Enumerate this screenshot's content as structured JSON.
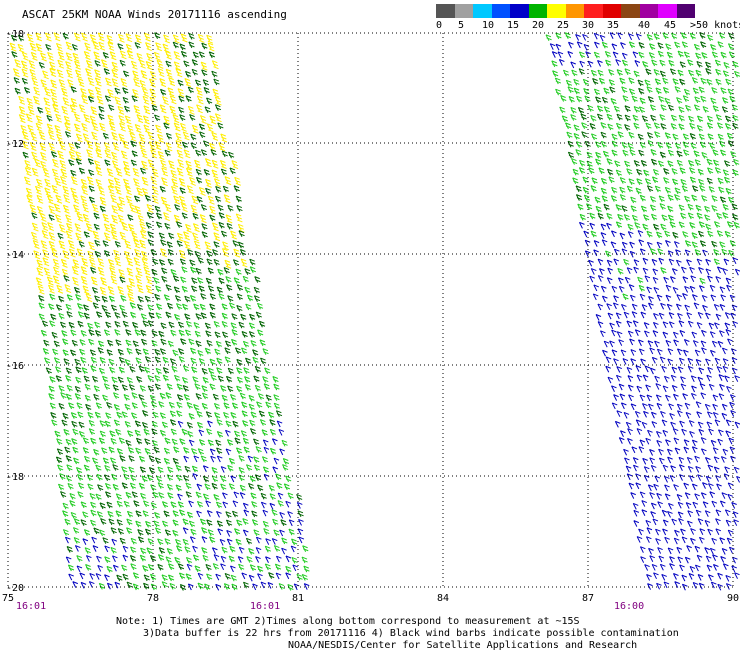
{
  "title": "ASCAT 25KM NOAA Winds 20171116 ascending",
  "legend": {
    "labels": [
      "0",
      "5",
      "10",
      "15",
      "20",
      "25",
      "30",
      "35",
      "40",
      "45",
      ">50 knots"
    ],
    "colors": [
      "#5a5a5a",
      "#9b9b9b",
      "#00c8ff",
      "#0050ff",
      "#0000c0",
      "#00b400",
      "#ffff00",
      "#ff9600",
      "#ff0000",
      "#e00000",
      "#8b5a2b",
      "#a000a0",
      "#e000e0",
      "#600080"
    ]
  },
  "axes": {
    "latitudes": [
      "-10",
      "-12",
      "-14",
      "-16",
      "-18",
      "-20"
    ],
    "longitudes": [
      "75",
      "78",
      "81",
      "84",
      "87",
      "90"
    ]
  },
  "times": [
    "16:01",
    "16:01",
    "16:00"
  ],
  "notes": {
    "line1": "Note: 1) Times are GMT 2)Times along bottom correspond to measurement at ~15S",
    "line2": "3)Data buffer is 22 hrs from 20171116 4) Black wind barbs indicate possible contamination",
    "line3": "NOAA/NESDIS/Center for Satellite Applications and Research"
  },
  "swaths": [
    {
      "name": "west-swath",
      "colors": {
        "weak": "#0000c0",
        "moderate": "#22cc22",
        "strong": "#006400",
        "gale": "#ffee00"
      }
    },
    {
      "name": "east-swath",
      "colors": {
        "weak": "#0000c0",
        "moderate": "#22cc22",
        "strong": "#006400"
      }
    }
  ]
}
